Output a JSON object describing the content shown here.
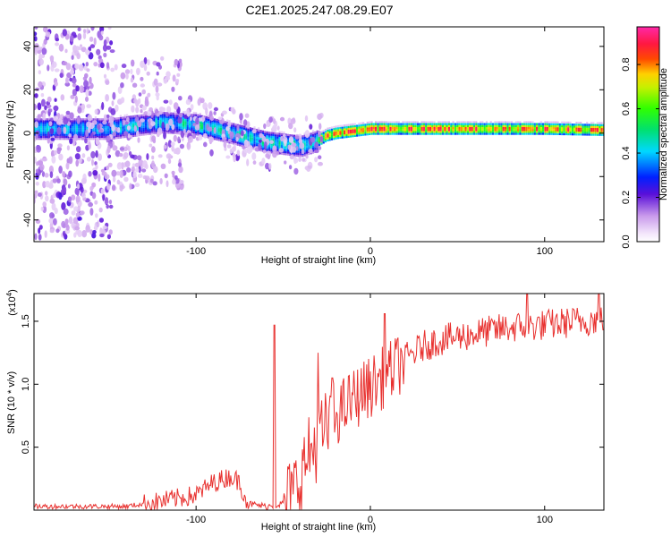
{
  "title": "C2E1.2025.247.08.29.E07",
  "chart_data": [
    {
      "type": "heatmap",
      "name": "spectrogram",
      "xlabel": "Height of straight line (km)",
      "ylabel": "Frequency (Hz)",
      "xlim": [
        -193,
        134
      ],
      "ylim": [
        -50,
        49
      ],
      "x_ticks": [
        -100,
        0,
        100
      ],
      "x_tick_labels": [
        "-100",
        "0",
        "100"
      ],
      "y_ticks": [
        -40,
        -20,
        0,
        20,
        40
      ],
      "y_tick_labels": [
        "-40",
        "-20",
        "0",
        "20",
        "40"
      ],
      "ridge_x": [
        -193,
        -150,
        -120,
        -100,
        -80,
        -70,
        -60,
        -50,
        -40,
        -32,
        -25,
        -20,
        -10,
        0,
        20,
        50,
        100,
        134
      ],
      "ridge_y": [
        2,
        2,
        5,
        4,
        0,
        -2,
        -4,
        -5,
        -6,
        -4,
        -1,
        0,
        1,
        2,
        2,
        2,
        2,
        1.5
      ],
      "colorbar": {
        "label": "Normalized spectral amplitude",
        "ticks": [
          0.0,
          0.2,
          0.4,
          0.6,
          0.8
        ],
        "tick_labels": [
          "0.0",
          "0.2",
          "0.4",
          "0.6",
          "0.8"
        ],
        "range": [
          0,
          0.97
        ]
      }
    },
    {
      "type": "line",
      "name": "snr",
      "xlabel": "Height of straight line (km)",
      "ylabel": "SNR (10 * v/v)",
      "scale_label": "(x10",
      "scale_exponent": "4",
      "xlim": [
        -193,
        134
      ],
      "ylim": [
        0,
        1.72
      ],
      "x_ticks": [
        -100,
        0,
        100
      ],
      "x_tick_labels": [
        "-100",
        "0",
        "100"
      ],
      "y_ticks": [
        0.5,
        1.0,
        1.5
      ],
      "y_tick_labels": [
        "0.5",
        "1.0",
        "1.5"
      ],
      "color": "#e8312f",
      "trend_x": [
        -193,
        -140,
        -120,
        -100,
        -90,
        -80,
        -75,
        -70,
        -60,
        -50,
        -45,
        -40,
        -35,
        -30,
        -20,
        -10,
        0,
        10,
        20,
        30,
        40,
        60,
        80,
        100,
        120,
        134
      ],
      "trend_y": [
        0.03,
        0.03,
        0.07,
        0.12,
        0.22,
        0.27,
        0.22,
        0.05,
        0.03,
        0.05,
        0.12,
        0.28,
        0.45,
        0.55,
        0.75,
        0.88,
        0.98,
        1.08,
        1.2,
        1.3,
        1.35,
        1.4,
        1.45,
        1.47,
        1.5,
        1.52
      ],
      "spikes": [
        {
          "x": -55,
          "y": 1.47
        },
        {
          "x": -30,
          "y": 1.25
        },
        {
          "x": -22,
          "y": 1.05
        },
        {
          "x": 8,
          "y": 1.56
        },
        {
          "x": 90,
          "y": 1.72
        },
        {
          "x": 131,
          "y": 1.72
        }
      ]
    }
  ]
}
